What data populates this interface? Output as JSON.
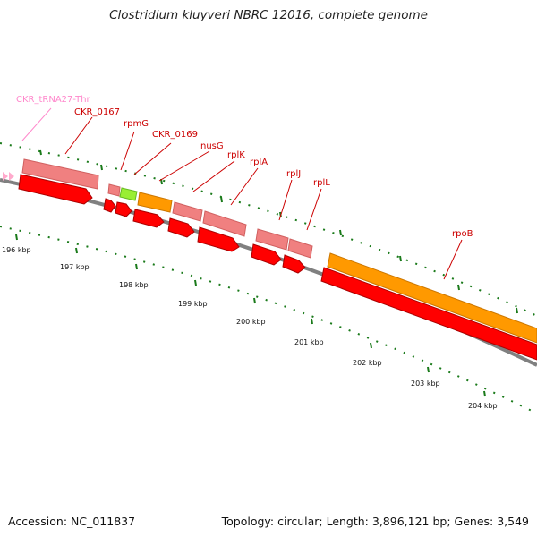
{
  "title": "Clostridium kluyveri NBRC 12016, complete genome",
  "footer": {
    "accession": "Accession: NC_011837",
    "topology": "Topology: circular; Length: 3,896,121 bp; Genes: 3,549"
  },
  "colors": {
    "cds": "#ff0000",
    "gene": "#f08080",
    "trna": "#ffaacc",
    "ribosomal": "#ff9900",
    "rrna_like": "#99ee33",
    "backbone": "#808080",
    "tick": "#1a7a1a",
    "label_red": "#cc0000",
    "label_pink": "#ff88cc"
  },
  "features": [
    {
      "label": "CKR_tRNA27-Thr",
      "type": "trna"
    },
    {
      "label": "CKR_0167",
      "type": "gene"
    },
    {
      "label": "rpmG",
      "type": "gene"
    },
    {
      "label": "CKR_0169",
      "type": "gene"
    },
    {
      "label": "nusG",
      "type": "gene"
    },
    {
      "label": "rplK",
      "type": "gene"
    },
    {
      "label": "rplA",
      "type": "gene"
    },
    {
      "label": "rplJ",
      "type": "gene"
    },
    {
      "label": "rplL",
      "type": "gene"
    },
    {
      "label": "rpoB",
      "type": "ribosomal"
    }
  ],
  "kbp_labels": [
    "196 kbp",
    "197 kbp",
    "198 kbp",
    "199 kbp",
    "200 kbp",
    "201 kbp",
    "202 kbp",
    "203 kbp",
    "204 kbp"
  ]
}
